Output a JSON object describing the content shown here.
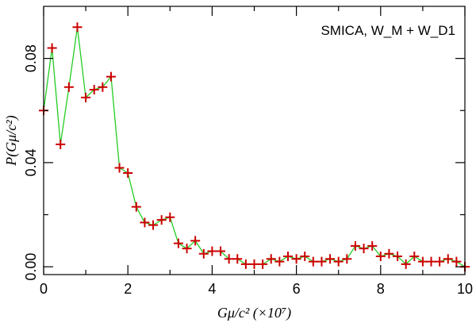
{
  "chart_data": {
    "type": "line",
    "title": "",
    "annotation": "SMICA, W_M + W_D1",
    "xlabel": "Gμ/c² (×10⁷)",
    "ylabel": "P(Gμ/c²)",
    "xlim": [
      0,
      10
    ],
    "ylim": [
      -0.003,
      0.1
    ],
    "x_ticks": [
      0,
      2,
      4,
      6,
      8,
      10
    ],
    "x_tick_labels": [
      "0",
      "2",
      "4",
      "6",
      "8",
      "10"
    ],
    "x_minor_ticks": [
      1,
      3,
      5,
      7,
      9
    ],
    "y_ticks": [
      0.0,
      0.04,
      0.08
    ],
    "y_tick_labels": [
      "0.00",
      "0.04",
      "0.08"
    ],
    "y_minor_ticks": [
      0.02,
      0.06
    ],
    "grid": false,
    "colors": {
      "line": "#22cc22",
      "marker": "#cc0000",
      "axis": "#000000"
    },
    "series": [
      {
        "x": [
          0.0,
          0.2,
          0.4,
          0.6,
          0.8,
          1.0,
          1.2,
          1.4,
          1.6,
          1.8,
          2.0,
          2.2,
          2.4,
          2.6,
          2.8,
          3.0,
          3.2,
          3.4,
          3.6,
          3.8,
          4.0,
          4.2,
          4.4,
          4.6,
          4.8,
          5.0,
          5.2,
          5.4,
          5.6,
          5.8,
          6.0,
          6.2,
          6.4,
          6.6,
          6.8,
          7.0,
          7.2,
          7.4,
          7.6,
          7.8,
          8.0,
          8.2,
          8.4,
          8.6,
          8.8,
          9.0,
          9.2,
          9.4,
          9.6,
          9.8,
          10.0
        ],
        "y": [
          0.06,
          0.084,
          0.047,
          0.069,
          0.092,
          0.065,
          0.068,
          0.069,
          0.073,
          0.038,
          0.036,
          0.023,
          0.017,
          0.016,
          0.018,
          0.019,
          0.009,
          0.007,
          0.01,
          0.005,
          0.006,
          0.006,
          0.003,
          0.003,
          0.001,
          0.001,
          0.001,
          0.003,
          0.002,
          0.004,
          0.003,
          0.004,
          0.002,
          0.002,
          0.003,
          0.002,
          0.003,
          0.008,
          0.007,
          0.008,
          0.004,
          0.005,
          0.004,
          0.001,
          0.004,
          0.002,
          0.002,
          0.002,
          0.003,
          0.002,
          0.0
        ]
      }
    ]
  }
}
